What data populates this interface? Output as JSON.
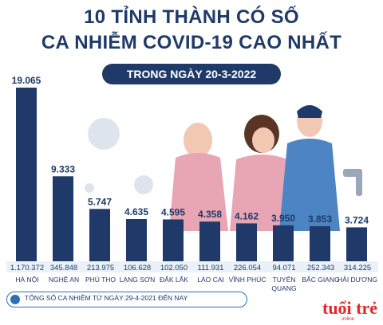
{
  "header": {
    "title_line1": "10 TỈNH THÀNH CÓ SỐ",
    "title_line2": "CA NHIỄM COVID-19 CAO NHẤT",
    "subtitle": "TRONG NGÀY 20-3-2022"
  },
  "footnote": "TỔNG SỐ CA NHIỄM TỪ NGÀY 29-4-2021 ĐẾN NAY",
  "logo": {
    "text": "tuổi trẻ",
    "subtext": "online"
  },
  "colors": {
    "bar": "#1f3a68",
    "title": "#1f3a68",
    "accent": "#2d6fb4",
    "logo_red": "#e3262a"
  },
  "chart_data": {
    "type": "bar",
    "categories": [
      "HÀ NỘI",
      "NGHỆ AN",
      "PHÚ THỌ",
      "LẠNG SƠN",
      "ĐẮK LẮK",
      "LÀO CAI",
      "VĨNH PHÚC",
      "TUYÊN QUANG",
      "BẮC GIANG",
      "HẢI DƯƠNG"
    ],
    "category_labels": [
      [
        "HÀ NỘI"
      ],
      [
        "NGHỆ AN"
      ],
      [
        "PHÚ THỌ"
      ],
      [
        "LẠNG SƠN"
      ],
      [
        "ĐẮK LẮK"
      ],
      [
        "LÀO CAI"
      ],
      [
        "VĨNH PHÚC"
      ],
      [
        "TUYÊN",
        "QUANG"
      ],
      [
        "BẮC GIANG"
      ],
      [
        "HẢI DƯƠNG"
      ]
    ],
    "values": [
      19065,
      9333,
      5747,
      4635,
      4595,
      4358,
      4162,
      3950,
      3853,
      3724
    ],
    "value_labels": [
      "19.065",
      "9.333",
      "5.747",
      "4.635",
      "4.595",
      "4.358",
      "4.162",
      "3.950",
      "3.853",
      "3.724"
    ],
    "cumulative_labels": [
      "1.170.372",
      "345.848",
      "213.975",
      "106.628",
      "102.050",
      "111.931",
      "226.054",
      "94.071",
      "252.343",
      "314.225"
    ]
  }
}
